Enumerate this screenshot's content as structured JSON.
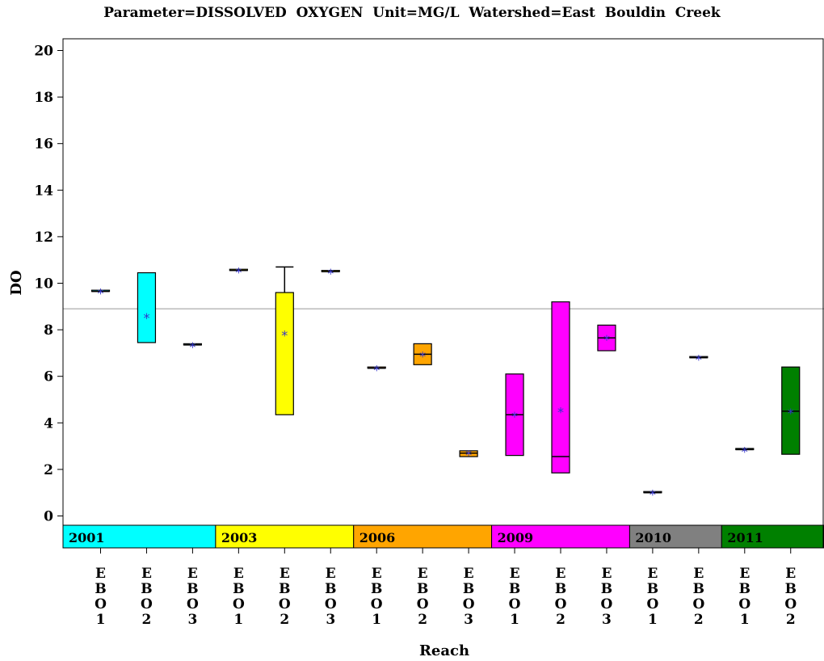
{
  "title": "Parameter=DISSOLVED  OXYGEN  Unit=MG/L  Watershed=East  Bouldin  Creek",
  "chart_data": {
    "type": "box",
    "xlabel": "Reach",
    "ylabel": "DO",
    "ylim": [
      0,
      20
    ],
    "yticks": [
      0,
      2,
      4,
      6,
      8,
      10,
      12,
      14,
      16,
      18,
      20
    ],
    "reference_line": 8.9,
    "groups": [
      {
        "year": "2001",
        "color": "#00FFFF",
        "reaches": [
          {
            "reach": "EBO1",
            "q1": 9.65,
            "median": 9.65,
            "q3": 9.7,
            "min": null,
            "max": null,
            "mean": 9.65
          },
          {
            "reach": "EBO2",
            "q1": 7.45,
            "median": null,
            "q3": 10.45,
            "min": null,
            "max": null,
            "mean": 8.6
          },
          {
            "reach": "EBO3",
            "q1": 7.35,
            "median": 7.35,
            "q3": 7.4,
            "min": null,
            "max": null,
            "mean": 7.35
          }
        ]
      },
      {
        "year": "2003",
        "color": "#FFFF00",
        "reaches": [
          {
            "reach": "EBO1",
            "q1": 10.55,
            "median": 10.55,
            "q3": 10.6,
            "min": null,
            "max": null,
            "mean": 10.55
          },
          {
            "reach": "EBO2",
            "q1": 4.35,
            "median": null,
            "q3": 9.6,
            "min": null,
            "max": 10.7,
            "mean": 7.85
          },
          {
            "reach": "EBO3",
            "q1": 10.5,
            "median": 10.5,
            "q3": 10.55,
            "min": null,
            "max": null,
            "mean": 10.5
          }
        ]
      },
      {
        "year": "2006",
        "color": "#FFA500",
        "reaches": [
          {
            "reach": "EBO1",
            "q1": 6.35,
            "median": 6.35,
            "q3": 6.4,
            "min": null,
            "max": null,
            "mean": 6.35
          },
          {
            "reach": "EBO2",
            "q1": 6.5,
            "median": 6.95,
            "q3": 7.4,
            "min": null,
            "max": null,
            "mean": 6.95
          },
          {
            "reach": "EBO3",
            "q1": 2.55,
            "median": 2.7,
            "q3": 2.8,
            "min": null,
            "max": null,
            "mean": 2.7
          }
        ]
      },
      {
        "year": "2009",
        "color": "#FF00FF",
        "reaches": [
          {
            "reach": "EBO1",
            "q1": 2.6,
            "median": 4.35,
            "q3": 6.1,
            "min": null,
            "max": null,
            "mean": 4.35
          },
          {
            "reach": "EBO2",
            "q1": 1.85,
            "median": 2.55,
            "q3": 9.2,
            "min": null,
            "max": null,
            "mean": 4.55
          },
          {
            "reach": "EBO3",
            "q1": 7.1,
            "median": 7.65,
            "q3": 8.2,
            "min": null,
            "max": null,
            "mean": 7.65
          }
        ]
      },
      {
        "year": "2010",
        "color": "#808080",
        "reaches": [
          {
            "reach": "EBO1",
            "q1": 1.0,
            "median": 1.0,
            "q3": 1.05,
            "min": null,
            "max": null,
            "mean": 1.0
          },
          {
            "reach": "EBO2",
            "q1": 6.8,
            "median": 6.8,
            "q3": 6.85,
            "min": null,
            "max": null,
            "mean": 6.8
          }
        ]
      },
      {
        "year": "2011",
        "color": "#008000",
        "reaches": [
          {
            "reach": "EBO1",
            "q1": 2.85,
            "median": 2.85,
            "q3": 2.9,
            "min": null,
            "max": null,
            "mean": 2.85
          },
          {
            "reach": "EBO2",
            "q1": 2.65,
            "median": 4.5,
            "q3": 6.4,
            "min": null,
            "max": null,
            "mean": 4.5
          }
        ]
      }
    ],
    "mean_marker_color": "#3333CC",
    "reference_line_color": "#999999"
  }
}
